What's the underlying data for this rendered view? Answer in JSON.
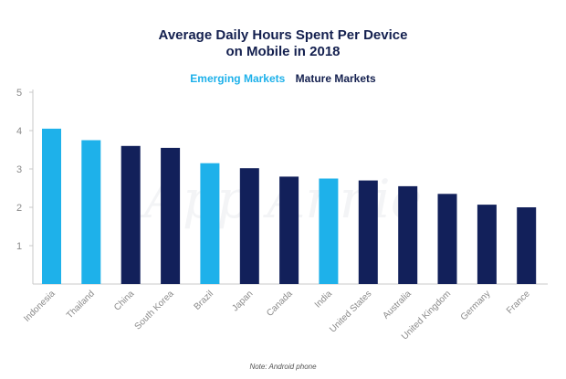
{
  "chart_data": {
    "type": "bar",
    "title_lines": [
      "Average Daily Hours Spent Per Device",
      "on Mobile in 2018"
    ],
    "legend": [
      {
        "name": "Emerging Markets",
        "color": "#1eb1ea"
      },
      {
        "name": "Mature Markets",
        "color": "#12205a"
      }
    ],
    "categories": [
      "Indonesia",
      "Thailand",
      "China",
      "South Korea",
      "Brazil",
      "Japan",
      "Canada",
      "India",
      "United States",
      "Australia",
      "United Kingdom",
      "Germany",
      "France"
    ],
    "values": [
      4.05,
      3.75,
      3.6,
      3.55,
      3.15,
      3.02,
      2.8,
      2.75,
      2.7,
      2.55,
      2.35,
      2.07,
      2.0
    ],
    "groups": [
      "Emerging Markets",
      "Emerging Markets",
      "Mature Markets",
      "Mature Markets",
      "Emerging Markets",
      "Mature Markets",
      "Mature Markets",
      "Emerging Markets",
      "Mature Markets",
      "Mature Markets",
      "Mature Markets",
      "Mature Markets",
      "Mature Markets"
    ],
    "ylim": [
      0,
      5
    ],
    "yticks": [
      1,
      2,
      3,
      4,
      5
    ],
    "grid": false,
    "legend_position": "top-center",
    "xlabel": "",
    "ylabel": "",
    "note": "Note: Android phone",
    "watermark": "App Annie"
  }
}
